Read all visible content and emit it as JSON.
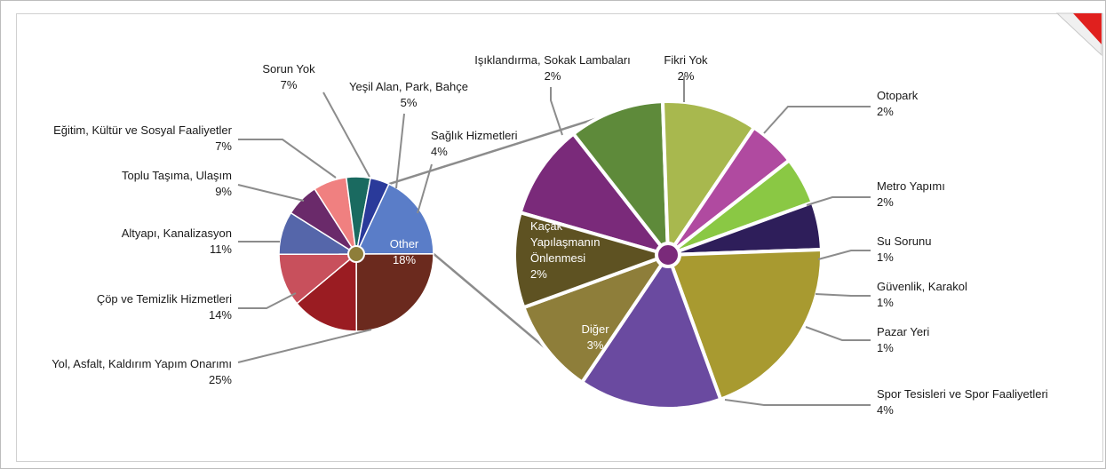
{
  "chart_data": {
    "type": "pie",
    "variant": "pie-of-pie",
    "title": "",
    "main_pie": {
      "slices": [
        {
          "label": "Other",
          "value": 18,
          "pct": "18%",
          "color": "#5a7dc8"
        },
        {
          "label": "Yol, Asfalt, Kaldırım Yapım Onarımı",
          "value": 25,
          "pct": "25%",
          "color": "#6b2a1e"
        },
        {
          "label": "Çöp ve Temizlik Hizmetleri",
          "value": 14,
          "pct": "14%",
          "color": "#9a1c22"
        },
        {
          "label": "Altyapı, Kanalizasyon",
          "value": 11,
          "pct": "11%",
          "color": "#c8505c"
        },
        {
          "label": "Toplu Taşıma, Ulaşım",
          "value": 9,
          "pct": "9%",
          "color": "#5566aa"
        },
        {
          "label": "Eğitim, Kültür ve Sosyal Faaliyetler",
          "value": 7,
          "pct": "7%",
          "color": "#6a2a6a"
        },
        {
          "label": "Sorun Yok",
          "value": 7,
          "pct": "7%",
          "color": "#f08080"
        },
        {
          "label": "Yeşil Alan, Park, Bahçe",
          "value": 5,
          "pct": "5%",
          "color": "#1a6a60"
        },
        {
          "label": "Sağlık Hizmetleri",
          "value": 4,
          "pct": "4%",
          "color": "#2a3a9a"
        }
      ]
    },
    "secondary_pie": {
      "slices": [
        {
          "label": "Fikri Yok",
          "value": 2,
          "pct": "2%",
          "color": "#7a2a7a"
        },
        {
          "label": "Otopark",
          "value": 2,
          "pct": "2%",
          "color": "#5e8a3a"
        },
        {
          "label": "Metro Yapımı",
          "value": 2,
          "pct": "2%",
          "color": "#a8b84e"
        },
        {
          "label": "Su Sorunu",
          "value": 1,
          "pct": "1%",
          "color": "#b04aa0"
        },
        {
          "label": "Güvenlik, Karakol",
          "value": 1,
          "pct": "1%",
          "color": "#8ac844"
        },
        {
          "label": "Pazar Yeri",
          "value": 1,
          "pct": "1%",
          "color": "#2e1e5a"
        },
        {
          "label": "Spor Tesisleri ve Spor Faaliyetleri",
          "value": 4,
          "pct": "4%",
          "color": "#a89a30"
        },
        {
          "label": "Diğer",
          "value": 3,
          "pct": "3%",
          "color": "#6a4aa0"
        },
        {
          "label": "Kaçak Yapılaşmanın Önlenmesi",
          "value": 2,
          "pct": "2%",
          "color": "#8e7e3a"
        },
        {
          "label": "Işıklandırma, Sokak Lambaları",
          "value": 2,
          "pct": "2%",
          "color": "#5e5222"
        }
      ]
    }
  },
  "labels": {
    "main": [
      {
        "name": "Other",
        "pct": "18%",
        "lines": [
          "Other"
        ]
      },
      {
        "name": "Yol, Asfalt, Kaldırım Yapım Onarımı",
        "pct": "25%",
        "lines": [
          "Yol, Asfalt, Kaldırım Yapım Onarımı"
        ]
      },
      {
        "name": "Çöp ve Temizlik Hizmetleri",
        "pct": "14%",
        "lines": [
          "Çöp ve Temizlik Hizmetleri"
        ]
      },
      {
        "name": "Altyapı, Kanalizasyon",
        "pct": "11%",
        "lines": [
          "Altyapı, Kanalizasyon"
        ]
      },
      {
        "name": "Toplu Taşıma, Ulaşım",
        "pct": "9%",
        "lines": [
          "Toplu Taşıma, Ulaşım"
        ]
      },
      {
        "name": "Eğitim, Kültür ve Sosyal Faaliyetler",
        "pct": "7%",
        "lines": [
          "Eğitim, Kültür ve Sosyal Faaliyetler"
        ]
      },
      {
        "name": "Sorun Yok",
        "pct": "7%",
        "lines": [
          "Sorun Yok"
        ]
      },
      {
        "name": "Yeşil Alan, Park, Bahçe",
        "pct": "5%",
        "lines": [
          "Yeşil Alan, Park, Bahçe"
        ]
      },
      {
        "name": "Sağlık Hizmetleri",
        "pct": "4%",
        "lines": [
          "Sağlık Hizmetleri"
        ]
      }
    ],
    "secondary": [
      {
        "name": "Fikri Yok",
        "pct": "2%",
        "lines": [
          "Fikri Yok"
        ]
      },
      {
        "name": "Otopark",
        "pct": "2%",
        "lines": [
          "Otopark"
        ]
      },
      {
        "name": "Metro Yapımı",
        "pct": "2%",
        "lines": [
          "Metro Yapımı"
        ]
      },
      {
        "name": "Su Sorunu",
        "pct": "1%",
        "lines": [
          "Su Sorunu"
        ]
      },
      {
        "name": "Güvenlik, Karakol",
        "pct": "1%",
        "lines": [
          "Güvenlik, Karakol"
        ]
      },
      {
        "name": "Pazar Yeri",
        "pct": "1%",
        "lines": [
          "Pazar Yeri"
        ]
      },
      {
        "name": "Spor Tesisleri ve Spor Faaliyetleri",
        "pct": "4%",
        "lines": [
          "Spor Tesisleri ve Spor Faaliyetleri"
        ]
      },
      {
        "name": "Diğer",
        "pct": "3%",
        "lines": [
          "Diğer"
        ]
      },
      {
        "name": "Kaçak Yapılaşmanın Önlenmesi",
        "pct": "2%",
        "lines": [
          "Kaçak",
          "Yapılaşmanın",
          "Önlenmesi"
        ]
      },
      {
        "name": "Işıklandırma, Sokak Lambaları",
        "pct": "2%",
        "lines": [
          "Işıklandırma, Sokak Lambaları"
        ]
      }
    ]
  },
  "colors": {
    "border": "#bdbdbd",
    "leader": "#8c8c8c",
    "corner_accent": "#e0201e"
  }
}
